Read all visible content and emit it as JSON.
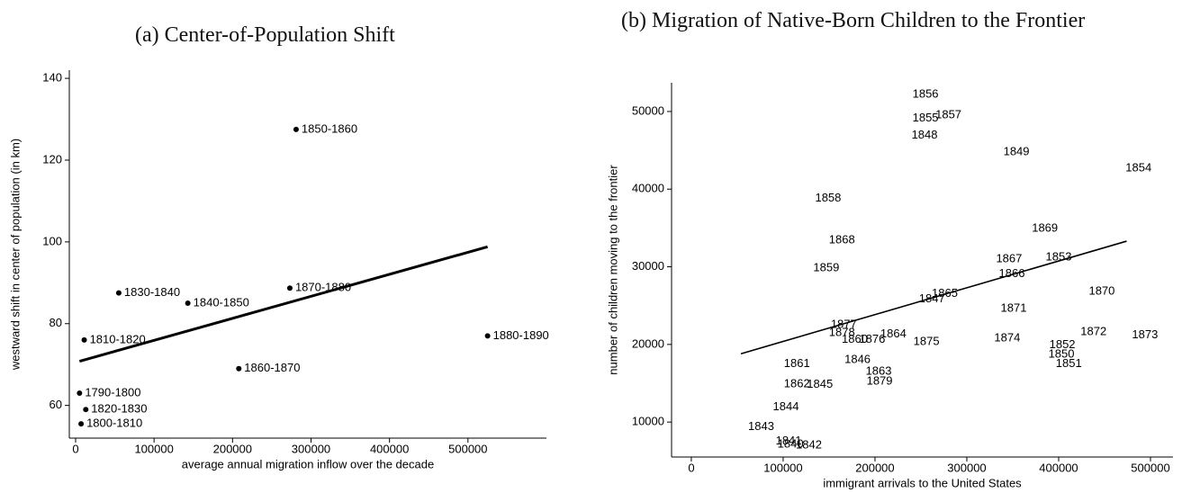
{
  "chart_data": [
    {
      "type": "scatter",
      "title": "(a) Center-of-Population Shift",
      "xlabel": "average annual migration inflow over the decade",
      "ylabel": "westward shift in center of population (in km)",
      "point_labels": [
        "1790-1800",
        "1800-1810",
        "1810-1820",
        "1820-1830",
        "1830-1840",
        "1840-1850",
        "1850-1860",
        "1860-1870",
        "1870-1880",
        "1880-1890"
      ],
      "x": [
        5000,
        7000,
        11000,
        13000,
        55000,
        143000,
        281000,
        208000,
        273000,
        525000
      ],
      "y": [
        63,
        55.5,
        76,
        59,
        87.5,
        85,
        127.5,
        69,
        88.7,
        77
      ],
      "fit_x": [
        5000,
        525000
      ],
      "fit_y": [
        70.8,
        98.8
      ],
      "markers": true,
      "label_position": "right",
      "color": "#000000",
      "xlim": [
        -8000,
        600000
      ],
      "ylim": [
        52,
        142
      ],
      "xticks": [
        0,
        100000,
        200000,
        300000,
        400000,
        500000
      ],
      "yticks": [
        60,
        80,
        100,
        120,
        140
      ],
      "grid": false
    },
    {
      "type": "scatter",
      "title": "(b) Migration of Native-Born Children to the Frontier",
      "xlabel": "immigrant arrivals to the United States",
      "ylabel": "number of children moving to the frontier",
      "point_labels": [
        "1856",
        "1855",
        "1857",
        "1848",
        "1849",
        "1854",
        "1858",
        "1869",
        "1868",
        "1867",
        "1853",
        "1866",
        "1859",
        "1870",
        "1865",
        "1847",
        "1871",
        "1877",
        "1878",
        "1860",
        "1876",
        "1864",
        "1875",
        "1874",
        "1872",
        "1873",
        "1852",
        "1850",
        "1851",
        "1861",
        "1846",
        "1863",
        "1879",
        "1862",
        "1845",
        "1844",
        "1843",
        "1841",
        "1840",
        "1842"
      ],
      "x": [
        255000,
        255000,
        280000,
        254000,
        354000,
        487000,
        149000,
        385000,
        164000,
        346000,
        400000,
        349000,
        147000,
        447000,
        276000,
        262000,
        351000,
        166000,
        164000,
        178000,
        197000,
        220000,
        256000,
        344000,
        438000,
        494000,
        404000,
        403000,
        411000,
        115000,
        181000,
        204000,
        205000,
        115000,
        140000,
        103000,
        76000,
        106000,
        108000,
        128000
      ],
      "y": [
        52200,
        49100,
        49500,
        46900,
        44800,
        42700,
        38800,
        34900,
        33400,
        31000,
        31200,
        29100,
        29800,
        26800,
        26500,
        25800,
        24600,
        22500,
        21500,
        20600,
        20600,
        21300,
        20300,
        20800,
        21600,
        21200,
        19900,
        18700,
        17500,
        17500,
        18000,
        16500,
        15200,
        14900,
        14800,
        11900,
        9400,
        7500,
        7100,
        7000
      ],
      "fit_x": [
        54000,
        474000
      ],
      "fit_y": [
        18800,
        33300
      ],
      "markers": false,
      "label_position": "center",
      "color": "#000000",
      "xlim": [
        -21500,
        524500
      ],
      "ylim": [
        5500,
        53700
      ],
      "xticks": [
        0,
        100000,
        200000,
        300000,
        400000,
        500000
      ],
      "yticks": [
        10000,
        20000,
        30000,
        40000,
        50000
      ],
      "grid": false
    }
  ]
}
